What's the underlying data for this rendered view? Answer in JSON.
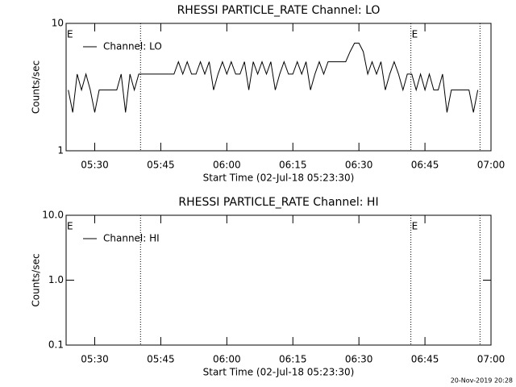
{
  "chart_data": [
    {
      "type": "line",
      "title": "RHESSI PARTICLE_RATE Channel: LO",
      "xlabel": "Start Time (02-Jul-18 05:23:30)",
      "ylabel": "Counts/sec",
      "yscale": "log",
      "ylim": [
        1,
        10
      ],
      "yticks": [
        1,
        10
      ],
      "xlim": [
        323.5,
        420
      ],
      "xticks": [
        {
          "value": 330,
          "label": "05:30"
        },
        {
          "value": 345,
          "label": "05:45"
        },
        {
          "value": 360,
          "label": "06:00"
        },
        {
          "value": 375,
          "label": "06:15"
        },
        {
          "value": 390,
          "label": "06:30"
        },
        {
          "value": 405,
          "label": "06:45"
        },
        {
          "value": 420,
          "label": "07:00"
        }
      ],
      "vlines": [
        340.4,
        401.8,
        417.5
      ],
      "annotations": [
        {
          "text": "E",
          "x": 323.5
        },
        {
          "text": "E",
          "x": 401.8
        }
      ],
      "legend": "upper left",
      "x": [
        324,
        325,
        326,
        327,
        328,
        329,
        330,
        331,
        332,
        333,
        334,
        335,
        336,
        337,
        338,
        339,
        340,
        341,
        342,
        343,
        344,
        345,
        346,
        347,
        348,
        349,
        350,
        351,
        352,
        353,
        354,
        355,
        356,
        357,
        358,
        359,
        360,
        361,
        362,
        363,
        364,
        365,
        366,
        367,
        368,
        369,
        370,
        371,
        372,
        373,
        374,
        375,
        376,
        377,
        378,
        379,
        380,
        381,
        382,
        383,
        384,
        385,
        386,
        387,
        388,
        389,
        390,
        391,
        392,
        393,
        394,
        395,
        396,
        397,
        398,
        399,
        400,
        401,
        402,
        403,
        404,
        405,
        406,
        407,
        408,
        409,
        410,
        411,
        412,
        413,
        414,
        415,
        416,
        417
      ],
      "series": [
        {
          "name": "Channel: LO",
          "color": "#000000",
          "values": [
            3,
            2,
            4,
            3,
            4,
            3,
            2,
            3,
            3,
            3,
            3,
            3,
            4,
            2,
            4,
            3,
            4,
            4,
            4,
            4,
            4,
            4,
            4,
            4,
            4,
            5,
            4,
            5,
            4,
            4,
            5,
            4,
            5,
            3,
            4,
            5,
            4,
            5,
            4,
            4,
            5,
            3,
            5,
            4,
            5,
            4,
            5,
            3,
            4,
            5,
            4,
            4,
            5,
            4,
            5,
            3,
            4,
            5,
            4,
            5,
            5,
            5,
            5,
            5,
            6,
            7,
            7,
            6,
            4,
            5,
            4,
            5,
            3,
            4,
            5,
            4,
            3,
            4,
            4,
            3,
            4,
            3,
            4,
            3,
            3,
            4,
            2,
            3,
            3,
            3,
            3,
            3,
            2,
            3
          ]
        }
      ]
    },
    {
      "type": "line",
      "title": "RHESSI PARTICLE_RATE Channel: HI",
      "xlabel": "Start Time (02-Jul-18 05:23:30)",
      "ylabel": "Counts/sec",
      "yscale": "log",
      "ylim": [
        0.1,
        10
      ],
      "yticks": [
        0.1,
        {
          "value": 1,
          "label": "1.0"
        },
        {
          "value": 10,
          "label": "10.0"
        }
      ],
      "xlim": [
        323.5,
        420
      ],
      "xticks": [
        {
          "value": 330,
          "label": "05:30"
        },
        {
          "value": 345,
          "label": "05:45"
        },
        {
          "value": 360,
          "label": "06:00"
        },
        {
          "value": 375,
          "label": "06:15"
        },
        {
          "value": 390,
          "label": "06:30"
        },
        {
          "value": 405,
          "label": "06:45"
        },
        {
          "value": 420,
          "label": "07:00"
        }
      ],
      "vlines": [
        340.4,
        401.8,
        417.5
      ],
      "annotations": [
        {
          "text": "E",
          "x": 323.5
        },
        {
          "text": "E",
          "x": 401.8
        }
      ],
      "legend": "upper left",
      "x": [],
      "series": [
        {
          "name": "Channel: HI",
          "color": "#000000",
          "values": []
        }
      ]
    }
  ],
  "footer": "20-Nov-2019 20:28"
}
